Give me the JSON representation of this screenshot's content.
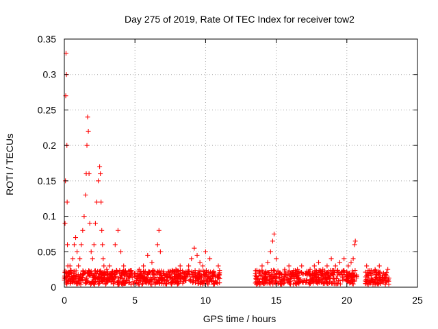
{
  "chart_data": {
    "type": "scatter",
    "title": "Day 275 of 2019, Rate Of TEC Index for receiver tow2",
    "xlabel": "GPS time / hours",
    "ylabel": "ROTI / TECUs",
    "xlim": [
      0,
      25
    ],
    "ylim": [
      0,
      0.35
    ],
    "xticks": [
      0,
      5,
      10,
      15,
      20,
      25
    ],
    "yticks": [
      0,
      0.05,
      0.1,
      0.15,
      0.2,
      0.25,
      0.3,
      0.35
    ],
    "xtick_labels": [
      "0",
      "5",
      "10",
      "15",
      "20",
      "25"
    ],
    "ytick_labels": [
      "0",
      "0.05",
      "0.1",
      "0.15",
      "0.2",
      "0.25",
      "0.3",
      "0.35"
    ],
    "grid": true,
    "marker": "+",
    "color": "#ff0000",
    "series": [
      {
        "name": "ROTI",
        "x": [
          0.0,
          0.05,
          0.08,
          0.1,
          0.12,
          0.15,
          0.18,
          0.2,
          0.22,
          0.25,
          0.3,
          0.35,
          0.4,
          0.5,
          0.6,
          0.7,
          0.8,
          0.9,
          1.0,
          1.1,
          1.2,
          1.3,
          1.4,
          1.5,
          1.55,
          1.6,
          1.65,
          1.7,
          1.75,
          1.8,
          1.9,
          2.0,
          2.1,
          2.2,
          2.3,
          2.4,
          2.5,
          2.55,
          2.6,
          2.65,
          2.7,
          2.75,
          2.8,
          2.9,
          3.0,
          3.2,
          3.4,
          3.6,
          3.8,
          4.0,
          4.2,
          4.4,
          4.6,
          4.8,
          5.0,
          5.3,
          5.6,
          5.9,
          6.2,
          6.4,
          6.6,
          6.7,
          6.8,
          7.0,
          7.3,
          7.6,
          7.9,
          8.2,
          8.5,
          8.8,
          9.0,
          9.2,
          9.4,
          9.6,
          9.8,
          10.0,
          10.3,
          10.6,
          10.9,
          13.6,
          13.8,
          14.0,
          14.2,
          14.4,
          14.6,
          14.75,
          14.85,
          15.0,
          15.3,
          15.6,
          15.9,
          16.2,
          16.5,
          16.8,
          17.1,
          17.4,
          17.7,
          18.0,
          18.3,
          18.6,
          18.9,
          19.2,
          19.5,
          19.8,
          20.1,
          20.3,
          20.45,
          20.55,
          20.6,
          21.4,
          21.7,
          22.0,
          22.3,
          22.6,
          22.9
        ],
        "y": [
          0.01,
          0.09,
          0.15,
          0.27,
          0.33,
          0.3,
          0.2,
          0.12,
          0.06,
          0.03,
          0.02,
          0.015,
          0.03,
          0.02,
          0.04,
          0.06,
          0.07,
          0.05,
          0.03,
          0.04,
          0.06,
          0.08,
          0.1,
          0.13,
          0.16,
          0.2,
          0.24,
          0.22,
          0.16,
          0.09,
          0.05,
          0.04,
          0.06,
          0.09,
          0.12,
          0.15,
          0.17,
          0.16,
          0.12,
          0.08,
          0.06,
          0.04,
          0.03,
          0.02,
          0.025,
          0.03,
          0.02,
          0.06,
          0.08,
          0.05,
          0.03,
          0.02,
          0.015,
          0.02,
          0.02,
          0.025,
          0.03,
          0.045,
          0.035,
          0.02,
          0.06,
          0.08,
          0.05,
          0.02,
          0.015,
          0.02,
          0.025,
          0.03,
          0.02,
          0.03,
          0.04,
          0.055,
          0.045,
          0.035,
          0.03,
          0.05,
          0.04,
          0.02,
          0.03,
          0.015,
          0.02,
          0.03,
          0.02,
          0.035,
          0.05,
          0.065,
          0.075,
          0.04,
          0.02,
          0.025,
          0.03,
          0.02,
          0.025,
          0.03,
          0.02,
          0.025,
          0.03,
          0.035,
          0.025,
          0.03,
          0.04,
          0.03,
          0.035,
          0.04,
          0.03,
          0.035,
          0.04,
          0.06,
          0.065,
          0.03,
          0.02,
          0.025,
          0.03,
          0.02,
          0.025
        ]
      }
    ],
    "gap_hours": [
      [
        11.0,
        13.5
      ],
      [
        20.7,
        21.3
      ]
    ]
  }
}
